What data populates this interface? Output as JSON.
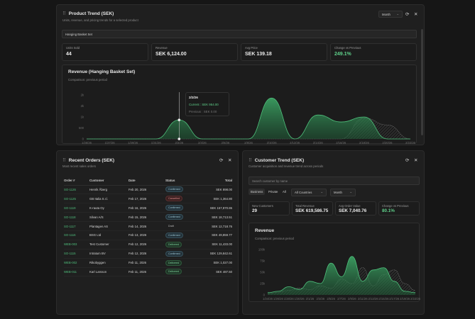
{
  "product_trend": {
    "title": "Product Trend (SEK)",
    "subtitle": "Units, revenue, and pricing trends for a selected product",
    "period_select": "Month",
    "product_select": "Hanging Basket Set",
    "stats": [
      {
        "label": "Units Sold",
        "value": "44"
      },
      {
        "label": "Revenue",
        "value": "SEK 6,124.00"
      },
      {
        "label": "Avg Price",
        "value": "SEK 139.18"
      },
      {
        "label": "Change vs Previous",
        "value": "249.1%"
      }
    ],
    "chart_title": "Revenue (Hanging Basket Set)",
    "chart_subtitle": "Comparison: previous period",
    "y_ticks": [
      "2k",
      "2k",
      "1k",
      "500",
      "0"
    ],
    "x_ticks": [
      "1/26/26",
      "1/27/26",
      "1/29/26",
      "1/31/26",
      "2/2/26",
      "2/4/26",
      "2/6/26",
      "2/8/26",
      "2/10/26",
      "2/12/26",
      "2/14/26",
      "2/16/26",
      "2/18/26",
      "2/20/26",
      "2/22/26"
    ],
    "tooltip": {
      "date": "2/2/26",
      "current": "Current : SEK 954.00",
      "previous": "Previous : SEK 0.00"
    },
    "chart_data": {
      "type": "area",
      "x": [
        "1/26/26",
        "1/27/26",
        "1/29/26",
        "1/31/26",
        "2/2/26",
        "2/4/26",
        "2/6/26",
        "2/8/26",
        "2/10/26",
        "2/12/26",
        "2/14/26",
        "2/16/26",
        "2/18/26",
        "2/20/26",
        "2/22/26"
      ],
      "series": [
        {
          "name": "Current",
          "values": [
            0,
            0,
            0,
            0,
            954,
            0,
            0,
            0,
            2050,
            0,
            1200,
            850,
            1100,
            0,
            0
          ]
        },
        {
          "name": "Previous",
          "values": [
            0,
            0,
            0,
            0,
            0,
            0,
            0,
            0,
            0,
            0,
            0,
            0,
            1050,
            700,
            0
          ]
        }
      ],
      "ylim": [
        0,
        2200
      ]
    }
  },
  "recent_orders": {
    "title": "Recent Orders (SEK)",
    "subtitle": "Most recent sales orders",
    "columns": [
      "Order #",
      "Customer",
      "Date",
      "Status",
      "Total"
    ],
    "rows": [
      {
        "id": "SO-1126",
        "customer": "Henrik Åberg",
        "date": "Feb 20, 2026",
        "status": "Confirmed",
        "status_kind": "confirmed",
        "total": "SEK 898.00"
      },
      {
        "id": "SO-1125",
        "customer": "GB Italia S.r.l.",
        "date": "Feb 17, 2026",
        "status": "Cancelled",
        "status_kind": "cancelled",
        "total": "SEK 1,364.80"
      },
      {
        "id": "SO-1119",
        "customer": "K-rauta Oy",
        "date": "Feb 16, 2026",
        "status": "Confirmed",
        "status_kind": "confirmed",
        "total": "SEK 157,870.86"
      },
      {
        "id": "SO-1118",
        "customer": "Silvan A/S",
        "date": "Feb 15, 2026",
        "status": "Confirmed",
        "status_kind": "confirmed",
        "total": "SEK 18,713.51"
      },
      {
        "id": "SO-1117",
        "customer": "Plantagen AS",
        "date": "Feb 14, 2026",
        "status": "Draft",
        "status_kind": "draft",
        "total": "SEK 12,718.76"
      },
      {
        "id": "SO-1116",
        "customer": "BSG Ltd",
        "date": "Feb 13, 2026",
        "status": "Confirmed",
        "status_kind": "confirmed",
        "total": "SEK 49,859.77"
      },
      {
        "id": "WEB-003",
        "customer": "Test Customer",
        "date": "Feb 12, 2026",
        "status": "Delivered",
        "status_kind": "delivered",
        "total": "SEK 11,433.00"
      },
      {
        "id": "SO-1115",
        "customer": "Intratum BV",
        "date": "Feb 12, 2026",
        "status": "Confirmed",
        "status_kind": "confirmed",
        "total": "SEK 129,842.61"
      },
      {
        "id": "WEB-002",
        "customer": "Rikobyggen",
        "date": "Feb 11, 2026",
        "status": "Delivered",
        "status_kind": "delivered",
        "total": "SEK 1,027.00"
      },
      {
        "id": "WEB-011",
        "customer": "Karl Larsson",
        "date": "Feb 11, 2026",
        "status": "Delivered",
        "status_kind": "delivered",
        "total": "SEK 487.50"
      }
    ]
  },
  "customer_trend": {
    "title": "Customer Trend (SEK)",
    "subtitle": "Customer acquisition and revenue trend across periods",
    "search_placeholder": "Search customer by name",
    "segments": [
      "Business",
      "Private",
      "All"
    ],
    "country_select": "All Countries",
    "period_select": "Month",
    "stats": [
      {
        "label": "New Customers",
        "value": "29"
      },
      {
        "label": "Total Revenue",
        "value": "SEK 619,586.75"
      },
      {
        "label": "Avg Order Value",
        "value": "SEK 7,040.76"
      },
      {
        "label": "Change vs Previous",
        "value": "80.1%"
      }
    ],
    "chart_title": "Revenue",
    "chart_subtitle": "Comparison: previous period",
    "y_ticks": [
      "100k",
      "75k",
      "50k",
      "25k",
      "0"
    ],
    "x_ticks": [
      "1/24/26",
      "1/26/26",
      "1/28/26",
      "1/30/26",
      "2/1/26",
      "2/3/26",
      "2/5/26",
      "2/7/26",
      "2/9/26",
      "2/11/26",
      "2/13/26",
      "2/15/26",
      "2/17/26",
      "2/19/26",
      "2/22/26"
    ],
    "chart_data": {
      "type": "area",
      "x": [
        "1/24/26",
        "1/26/26",
        "1/28/26",
        "1/30/26",
        "2/1/26",
        "2/3/26",
        "2/5/26",
        "2/7/26",
        "2/9/26",
        "2/11/26",
        "2/13/26",
        "2/15/26",
        "2/17/26",
        "2/19/26",
        "2/22/26"
      ],
      "series": [
        {
          "name": "Current",
          "values": [
            5000,
            8000,
            18000,
            12000,
            30000,
            25000,
            70000,
            40000,
            85000,
            30000,
            55000,
            60000,
            30000,
            8000,
            5000
          ]
        },
        {
          "name": "Previous",
          "values": [
            3000,
            6000,
            10000,
            15000,
            12000,
            20000,
            15000,
            35000,
            25000,
            60000,
            20000,
            45000,
            55000,
            25000,
            10000
          ]
        }
      ],
      "ylim": [
        0,
        100000
      ]
    }
  }
}
